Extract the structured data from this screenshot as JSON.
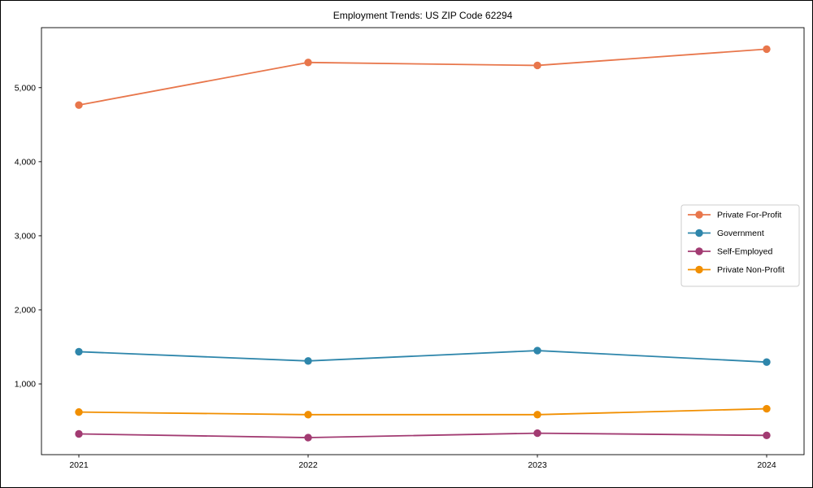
{
  "title": "Employment Trends: US ZIP Code 62294",
  "chart_data": {
    "type": "line",
    "title": "Employment Trends: US ZIP Code 62294",
    "xlabel": "",
    "ylabel": "",
    "x": [
      2021,
      2022,
      2023,
      2024
    ],
    "x_tick_labels": [
      "2021",
      "2022",
      "2023",
      "2024"
    ],
    "y_ticks": [
      1000,
      2000,
      3000,
      4000,
      5000
    ],
    "y_tick_labels": [
      "1,000",
      "2,000",
      "3,000",
      "4,000",
      "5,000"
    ],
    "ylim": [
      45,
      5810
    ],
    "grid": false,
    "legend_position": "center right",
    "marker": "circle",
    "series": [
      {
        "name": "Private For-Profit",
        "color": "#E8764B",
        "values": [
          4765,
          5340,
          5300,
          5520
        ]
      },
      {
        "name": "Government",
        "color": "#2E86AB",
        "values": [
          1435,
          1310,
          1450,
          1295
        ]
      },
      {
        "name": "Self-Employed",
        "color": "#A23B72",
        "values": [
          325,
          275,
          335,
          305
        ]
      },
      {
        "name": "Private Non-Profit",
        "color": "#F18F01",
        "values": [
          620,
          585,
          585,
          665
        ]
      }
    ]
  }
}
